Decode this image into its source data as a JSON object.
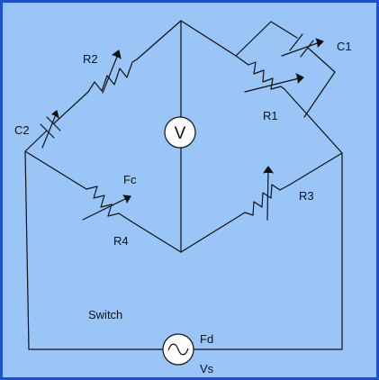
{
  "colors": {
    "background": "#99c5f7",
    "frame": "#1e4fd0",
    "wire": "#111111",
    "meter_fill": "#ffffff"
  },
  "labels": {
    "r1": "R1",
    "r2": "R2",
    "r3": "R3",
    "r4": "R4",
    "c1": "C1",
    "c2": "C2",
    "fc": "Fc",
    "fd": "Fd",
    "vs": "Vs",
    "switch": "Switch",
    "voltmeter": "V"
  },
  "icons": {
    "voltmeter": "voltmeter-icon",
    "source": "ac-source-icon"
  }
}
